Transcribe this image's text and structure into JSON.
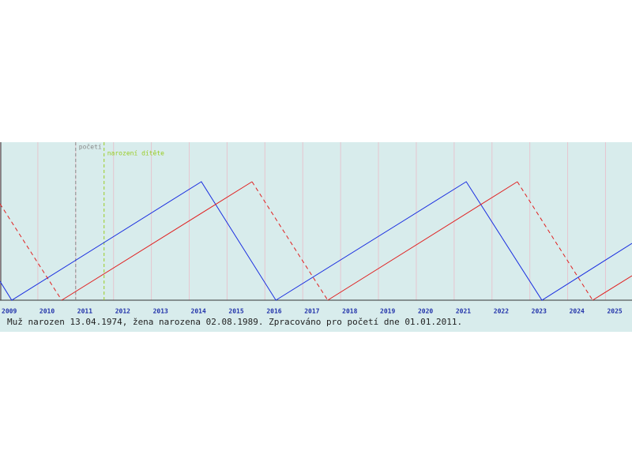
{
  "chart_data": {
    "type": "line",
    "caption": "Muž narozen 13.04.1974, žena narozena 02.08.1989. Zpracováno pro početí dne 01.01.2011.",
    "xlim": [
      2009,
      2025.7
    ],
    "ylim": [
      0,
      200
    ],
    "xticks": [
      2009,
      2010,
      2011,
      2012,
      2013,
      2014,
      2015,
      2016,
      2017,
      2018,
      2019,
      2020,
      2021,
      2022,
      2023,
      2024,
      2025
    ],
    "grid": true,
    "background": "#d8ecec",
    "series": [
      {
        "color": "#1a2ee0",
        "dash": false,
        "x": [
          2009,
          2009.31,
          2014.32,
          2016.29,
          2021.32,
          2023.32,
          2025.7
        ],
        "values": [
          24,
          0,
          150,
          0,
          150,
          0,
          72
        ]
      },
      {
        "color": "#e02020",
        "dash": false,
        "x": [
          2010.63,
          2015.66,
          null,
          2017.66,
          2022.67,
          null,
          2024.66,
          2025.7
        ],
        "values": [
          0,
          150,
          null,
          0,
          150,
          null,
          0,
          31
        ]
      },
      {
        "color": "#e02020",
        "dash": true,
        "x": [
          2009,
          2010.63,
          null,
          2015.66,
          2017.66,
          null,
          2022.67,
          2024.66
        ],
        "values": [
          122,
          0,
          null,
          150,
          0,
          null,
          150,
          0
        ]
      }
    ],
    "vlines": [
      {
        "x": 2011.0,
        "label": "početí",
        "color": "#8a8a8a"
      },
      {
        "x": 2011.75,
        "label": "narození dítěte",
        "color": "#99cc22"
      }
    ]
  }
}
